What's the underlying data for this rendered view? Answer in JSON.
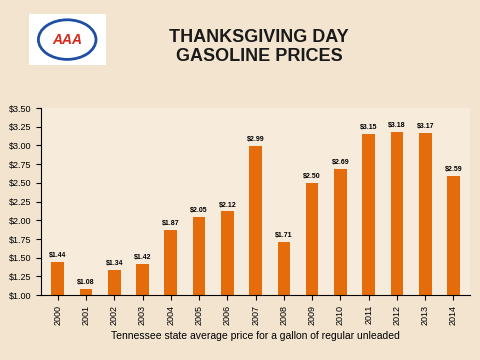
{
  "chart_data": {
    "type": "bar",
    "title": "THANKSGIVING DAY\nGASOLINE PRICES",
    "logo": "AAA",
    "xlabel": "Tennessee state average price for a gallon of regular unleaded",
    "categories": [
      "2000",
      "2001",
      "2002",
      "2003",
      "2004",
      "2005",
      "2006",
      "2007",
      "2008",
      "2009",
      "2010",
      "2011",
      "2012",
      "2013",
      "2014"
    ],
    "values": [
      1.44,
      1.08,
      1.34,
      1.42,
      1.87,
      2.05,
      2.12,
      2.99,
      1.71,
      2.5,
      2.69,
      3.15,
      3.18,
      3.17,
      2.59
    ],
    "value_labels": [
      "$1.44",
      "$1.08",
      "$1.34",
      "$1.42",
      "$1.87",
      "$2.05",
      "$2.12",
      "$2.99",
      "$1.71",
      "$2.50",
      "$2.69",
      "$3.15",
      "$3.18",
      "$3.17",
      "$2.59"
    ],
    "data_labels": true,
    "color": "#e46c0a",
    "ylim": [
      1.0,
      3.5
    ],
    "yticks": [
      {
        "value": 1.0,
        "label": "$1.00"
      },
      {
        "value": 1.25,
        "label": "$1.25"
      },
      {
        "value": 1.5,
        "label": "$1.50"
      },
      {
        "value": 1.75,
        "label": "$1.75"
      },
      {
        "value": 2.0,
        "label": "$2.00"
      },
      {
        "value": 2.25,
        "label": "$2.25"
      },
      {
        "value": 2.5,
        "label": "$2.50"
      },
      {
        "value": 2.75,
        "label": "$2.75"
      },
      {
        "value": 3.0,
        "label": "$3.00"
      },
      {
        "value": 3.25,
        "label": "$3.25"
      },
      {
        "value": 3.5,
        "label": "$3.50"
      }
    ],
    "grid": false
  }
}
